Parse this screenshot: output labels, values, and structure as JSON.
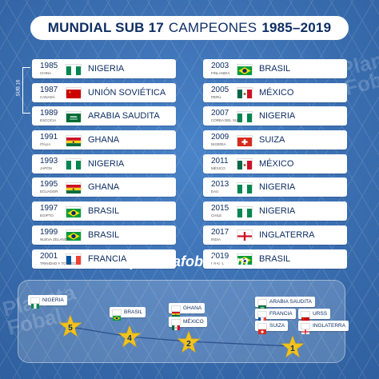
{
  "title": {
    "bold1": "MUNDIAL SUB 17",
    "normal": "CAMPEONES",
    "bold2": "1985–2019"
  },
  "sub16_label": "SUB 16",
  "left": [
    {
      "year": "1985",
      "host": "CHINA",
      "country": "NIGERIA",
      "flag": "nigeria"
    },
    {
      "year": "1987",
      "host": "CANADÁ",
      "country": "UNIÓN SOVIÉTICA",
      "flag": "ussr"
    },
    {
      "year": "1989",
      "host": "ESCOCIA",
      "country": "ARABIA SAUDITA",
      "flag": "saudi"
    },
    {
      "year": "1991",
      "host": "ITALIA",
      "country": "GHANA",
      "flag": "ghana"
    },
    {
      "year": "1993",
      "host": "JAPÓN",
      "country": "NIGERIA",
      "flag": "nigeria"
    },
    {
      "year": "1995",
      "host": "ECUADOR",
      "country": "GHANA",
      "flag": "ghana"
    },
    {
      "year": "1997",
      "host": "EGIPTO",
      "country": "BRASIL",
      "flag": "brazil"
    },
    {
      "year": "1999",
      "host": "NUEVA ZELANDA",
      "country": "BRASIL",
      "flag": "brazil"
    },
    {
      "year": "2001",
      "host": "TRINIDAD Y TOBAGO",
      "country": "FRANCIA",
      "flag": "france"
    }
  ],
  "right": [
    {
      "year": "2003",
      "host": "FINLANDIA",
      "country": "BRASIL",
      "flag": "brazil"
    },
    {
      "year": "2005",
      "host": "PERÚ",
      "country": "MÉXICO",
      "flag": "mexico"
    },
    {
      "year": "2007",
      "host": "COREA DEL SUR",
      "country": "NIGERIA",
      "flag": "nigeria"
    },
    {
      "year": "2009",
      "host": "NIGERIA",
      "country": "SUIZA",
      "flag": "swiss"
    },
    {
      "year": "2011",
      "host": "MÉXICO",
      "country": "MÉXICO",
      "flag": "mexico"
    },
    {
      "year": "2013",
      "host": "EAU",
      "country": "NIGERIA",
      "flag": "nigeria"
    },
    {
      "year": "2015",
      "host": "CHILE",
      "country": "NIGERIA",
      "flag": "nigeria"
    },
    {
      "year": "2017",
      "host": "INDIA",
      "country": "INGLATERRA",
      "flag": "england"
    },
    {
      "year": "2019",
      "host": "BRASIL",
      "country": "BRASIL",
      "flag": "brazil"
    }
  ],
  "brand": "planetafobal.com",
  "watermark": "Planeta Fobal",
  "ranking": [
    {
      "stars": "5",
      "teams": [
        {
          "name": "NIGERIA",
          "flag": "nigeria"
        }
      ]
    },
    {
      "stars": "4",
      "teams": [
        {
          "name": "BRASIL",
          "flag": "brazil"
        }
      ]
    },
    {
      "stars": "2",
      "teams": [
        {
          "name": "GHANA",
          "flag": "ghana"
        },
        {
          "name": "MÉXICO",
          "flag": "mexico"
        }
      ]
    },
    {
      "stars": "1",
      "teams": [
        {
          "name": "ARABIA SAUDITA",
          "flag": "saudi"
        },
        {
          "name": "FRANCIA",
          "flag": "france"
        },
        {
          "name": "URSS",
          "flag": "ussr"
        },
        {
          "name": "SUIZA",
          "flag": "swiss"
        },
        {
          "name": "INGLATERRA",
          "flag": "england"
        }
      ]
    }
  ],
  "colors": {
    "navy": "#0e2e63",
    "star": "#f2c21d",
    "bg": "#3d73b5"
  }
}
